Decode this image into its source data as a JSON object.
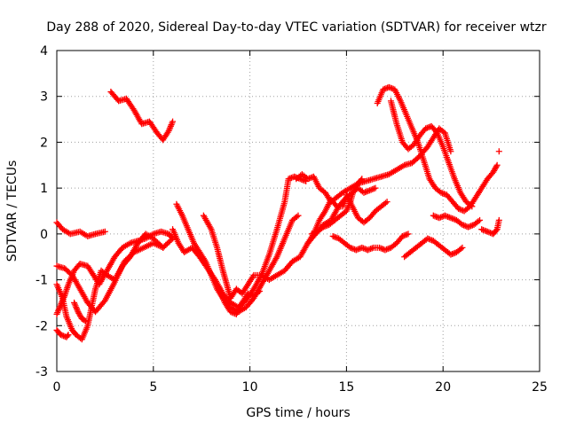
{
  "chart_data": {
    "type": "scatter",
    "title": "Day 288 of 2020, Sidereal Day-to-day VTEC variation (SDTVAR) for receiver wtzr",
    "xlabel": "GPS time / hours",
    "ylabel": "SDTVAR / TECUs",
    "xlim": [
      0,
      25
    ],
    "ylim": [
      -3,
      4
    ],
    "xticks": [
      0,
      5,
      10,
      15,
      20,
      25
    ],
    "yticks": [
      -3,
      -2,
      -1,
      0,
      1,
      2,
      3,
      4
    ],
    "grid": true,
    "marker": "+",
    "color": "#ff0000",
    "series": [
      {
        "name": "trace-1",
        "points": [
          [
            0.0,
            0.25
          ],
          [
            0.3,
            0.1
          ],
          [
            0.7,
            0.0
          ],
          [
            1.2,
            0.05
          ],
          [
            1.6,
            -0.05
          ],
          [
            2.0,
            0.0
          ],
          [
            2.5,
            0.05
          ]
        ]
      },
      {
        "name": "trace-2",
        "points": [
          [
            0.0,
            -0.7
          ],
          [
            0.4,
            -0.75
          ],
          [
            0.8,
            -0.9
          ],
          [
            1.2,
            -1.2
          ],
          [
            1.6,
            -1.5
          ],
          [
            2.0,
            -1.7
          ],
          [
            2.5,
            -1.45
          ],
          [
            3.0,
            -1.05
          ],
          [
            3.5,
            -0.6
          ],
          [
            4.0,
            -0.4
          ],
          [
            4.5,
            -0.3
          ],
          [
            5.0,
            -0.2
          ],
          [
            5.5,
            -0.3
          ]
        ]
      },
      {
        "name": "trace-3",
        "points": [
          [
            0.0,
            -1.1
          ],
          [
            0.3,
            -1.4
          ],
          [
            0.5,
            -1.8
          ],
          [
            0.8,
            -2.1
          ],
          [
            1.0,
            -2.2
          ],
          [
            1.3,
            -2.3
          ],
          [
            1.6,
            -2.0
          ],
          [
            1.8,
            -1.6
          ],
          [
            2.0,
            -1.2
          ],
          [
            2.3,
            -0.8
          ],
          [
            2.6,
            -0.9
          ],
          [
            3.0,
            -1.0
          ],
          [
            3.4,
            -0.7
          ],
          [
            3.8,
            -0.5
          ],
          [
            4.2,
            -0.2
          ],
          [
            4.6,
            0.0
          ],
          [
            5.0,
            -0.1
          ],
          [
            5.5,
            -0.3
          ],
          [
            6.0,
            -0.1
          ]
        ]
      },
      {
        "name": "trace-4",
        "points": [
          [
            0.0,
            -1.75
          ],
          [
            0.2,
            -1.55
          ],
          [
            0.4,
            -1.35
          ],
          [
            0.6,
            -1.1
          ],
          [
            0.9,
            -0.8
          ],
          [
            1.2,
            -0.65
          ],
          [
            1.6,
            -0.7
          ],
          [
            1.9,
            -0.9
          ],
          [
            2.2,
            -1.1
          ],
          [
            2.6,
            -0.8
          ],
          [
            3.0,
            -0.5
          ],
          [
            3.4,
            -0.3
          ],
          [
            3.8,
            -0.2
          ],
          [
            4.2,
            -0.15
          ],
          [
            4.6,
            -0.1
          ],
          [
            5.0,
            0.0
          ],
          [
            5.4,
            0.05
          ],
          [
            5.8,
            0.0
          ],
          [
            6.0,
            -0.1
          ]
        ]
      },
      {
        "name": "trace-5",
        "points": [
          [
            0.0,
            -2.1
          ],
          [
            0.2,
            -2.2
          ],
          [
            0.5,
            -2.25
          ],
          [
            0.6,
            -2.2
          ]
        ]
      },
      {
        "name": "trace-6",
        "points": [
          [
            0.9,
            -1.5
          ],
          [
            1.1,
            -1.7
          ],
          [
            1.3,
            -1.85
          ],
          [
            1.5,
            -1.9
          ]
        ]
      },
      {
        "name": "trace-7",
        "points": [
          [
            2.8,
            3.1
          ],
          [
            3.2,
            2.9
          ],
          [
            3.6,
            2.95
          ],
          [
            4.0,
            2.7
          ],
          [
            4.4,
            2.4
          ],
          [
            4.8,
            2.45
          ],
          [
            5.2,
            2.2
          ],
          [
            5.5,
            2.05
          ],
          [
            5.8,
            2.25
          ],
          [
            6.0,
            2.45
          ]
        ]
      },
      {
        "name": "trace-8",
        "points": [
          [
            6.0,
            0.1
          ],
          [
            6.3,
            -0.2
          ],
          [
            6.6,
            -0.4
          ],
          [
            7.0,
            -0.3
          ],
          [
            7.4,
            -0.5
          ],
          [
            7.8,
            -0.75
          ],
          [
            8.2,
            -1.0
          ],
          [
            8.6,
            -1.3
          ],
          [
            9.0,
            -1.5
          ],
          [
            9.4,
            -1.6
          ],
          [
            9.8,
            -1.45
          ],
          [
            10.2,
            -1.2
          ],
          [
            10.6,
            -0.9
          ],
          [
            11.0,
            -0.45
          ],
          [
            11.4,
            0.1
          ],
          [
            11.8,
            0.7
          ],
          [
            12.0,
            1.2
          ],
          [
            12.3,
            1.25
          ],
          [
            12.6,
            1.2
          ],
          [
            12.9,
            1.15
          ]
        ]
      },
      {
        "name": "trace-9",
        "points": [
          [
            6.2,
            0.65
          ],
          [
            6.5,
            0.4
          ],
          [
            6.8,
            0.1
          ],
          [
            7.1,
            -0.2
          ],
          [
            7.4,
            -0.4
          ],
          [
            7.7,
            -0.6
          ],
          [
            8.0,
            -0.9
          ],
          [
            8.3,
            -1.2
          ],
          [
            8.6,
            -1.4
          ],
          [
            9.0,
            -1.6
          ],
          [
            9.4,
            -1.7
          ],
          [
            9.8,
            -1.6
          ],
          [
            10.2,
            -1.4
          ],
          [
            10.6,
            -1.1
          ],
          [
            11.0,
            -0.8
          ],
          [
            11.4,
            -0.5
          ],
          [
            11.8,
            -0.1
          ],
          [
            12.2,
            0.3
          ],
          [
            12.5,
            0.4
          ]
        ]
      },
      {
        "name": "trace-10",
        "points": [
          [
            7.6,
            0.4
          ],
          [
            8.0,
            0.1
          ],
          [
            8.3,
            -0.3
          ],
          [
            8.6,
            -0.8
          ],
          [
            8.8,
            -1.1
          ],
          [
            9.0,
            -1.4
          ],
          [
            9.3,
            -1.2
          ],
          [
            9.6,
            -1.3
          ],
          [
            9.9,
            -1.1
          ],
          [
            10.2,
            -0.9
          ],
          [
            10.6,
            -0.9
          ],
          [
            11.0,
            -1.0
          ],
          [
            11.4,
            -0.9
          ],
          [
            11.8,
            -0.8
          ],
          [
            12.2,
            -0.6
          ],
          [
            12.6,
            -0.5
          ],
          [
            13.0,
            -0.2
          ],
          [
            13.4,
            0.0
          ],
          [
            13.8,
            0.2
          ],
          [
            14.2,
            0.3
          ],
          [
            14.6,
            0.6
          ],
          [
            15.0,
            0.8
          ]
        ]
      },
      {
        "name": "trace-11",
        "points": [
          [
            8.4,
            -1.2
          ],
          [
            8.7,
            -1.5
          ],
          [
            9.0,
            -1.7
          ],
          [
            9.3,
            -1.75
          ],
          [
            9.6,
            -1.5
          ],
          [
            9.9,
            -1.3
          ],
          [
            10.2,
            -1.35
          ],
          [
            10.5,
            -1.25
          ]
        ]
      },
      {
        "name": "trace-12",
        "points": [
          [
            12.4,
            1.2
          ],
          [
            12.7,
            1.3
          ],
          [
            13.0,
            1.2
          ],
          [
            13.3,
            1.25
          ],
          [
            13.6,
            1.0
          ],
          [
            13.9,
            0.9
          ],
          [
            14.2,
            0.7
          ],
          [
            14.5,
            0.8
          ],
          [
            14.8,
            0.9
          ],
          [
            15.2,
            1.0
          ],
          [
            15.6,
            1.1
          ],
          [
            16.0,
            1.15
          ],
          [
            16.4,
            1.2
          ],
          [
            16.8,
            1.25
          ],
          [
            17.2,
            1.3
          ],
          [
            17.6,
            1.4
          ],
          [
            18.0,
            1.5
          ],
          [
            18.4,
            1.55
          ],
          [
            18.8,
            1.7
          ],
          [
            19.2,
            1.9
          ],
          [
            19.5,
            2.1
          ],
          [
            19.8,
            2.3
          ],
          [
            20.1,
            2.2
          ],
          [
            20.4,
            1.8
          ]
        ]
      },
      {
        "name": "trace-13",
        "points": [
          [
            13.0,
            -0.2
          ],
          [
            13.3,
            0.0
          ],
          [
            13.6,
            0.3
          ],
          [
            13.9,
            0.5
          ],
          [
            14.2,
            0.75
          ],
          [
            14.5,
            0.6
          ],
          [
            14.8,
            0.6
          ],
          [
            15.0,
            0.8
          ],
          [
            15.3,
            0.9
          ],
          [
            15.6,
            1.0
          ],
          [
            15.9,
            0.9
          ],
          [
            16.2,
            0.95
          ],
          [
            16.5,
            1.0
          ]
        ]
      },
      {
        "name": "trace-14",
        "points": [
          [
            13.2,
            0.0
          ],
          [
            13.5,
            0.05
          ],
          [
            13.8,
            0.15
          ],
          [
            14.1,
            0.2
          ],
          [
            14.4,
            0.3
          ],
          [
            14.7,
            0.4
          ],
          [
            15.0,
            0.5
          ],
          [
            15.2,
            0.7
          ],
          [
            15.4,
            1.0
          ],
          [
            15.6,
            1.1
          ],
          [
            15.8,
            1.2
          ]
        ]
      },
      {
        "name": "trace-15",
        "points": [
          [
            14.3,
            -0.05
          ],
          [
            14.6,
            -0.1
          ],
          [
            14.9,
            -0.2
          ],
          [
            15.2,
            -0.3
          ],
          [
            15.5,
            -0.35
          ],
          [
            15.8,
            -0.3
          ],
          [
            16.1,
            -0.35
          ],
          [
            16.4,
            -0.3
          ],
          [
            16.7,
            -0.3
          ],
          [
            17.0,
            -0.35
          ],
          [
            17.3,
            -0.3
          ],
          [
            17.6,
            -0.2
          ],
          [
            17.9,
            -0.05
          ],
          [
            18.2,
            0.0
          ]
        ]
      },
      {
        "name": "trace-16",
        "points": [
          [
            15.0,
            0.85
          ],
          [
            15.3,
            0.6
          ],
          [
            15.6,
            0.35
          ],
          [
            15.9,
            0.25
          ],
          [
            16.2,
            0.35
          ],
          [
            16.5,
            0.5
          ],
          [
            16.8,
            0.6
          ],
          [
            17.1,
            0.7
          ]
        ]
      },
      {
        "name": "trace-17",
        "points": [
          [
            16.6,
            2.85
          ],
          [
            16.9,
            3.15
          ],
          [
            17.2,
            3.2
          ],
          [
            17.5,
            3.15
          ],
          [
            17.8,
            2.9
          ],
          [
            18.1,
            2.6
          ],
          [
            18.4,
            2.3
          ],
          [
            18.7,
            2.0
          ],
          [
            19.0,
            1.6
          ],
          [
            19.3,
            1.2
          ],
          [
            19.6,
            1.0
          ],
          [
            19.9,
            0.9
          ],
          [
            20.2,
            0.85
          ],
          [
            20.5,
            0.7
          ],
          [
            20.8,
            0.55
          ],
          [
            21.1,
            0.5
          ],
          [
            21.4,
            0.6
          ],
          [
            21.7,
            0.8
          ],
          [
            22.0,
            1.0
          ],
          [
            22.3,
            1.2
          ],
          [
            22.6,
            1.35
          ],
          [
            22.8,
            1.5
          ]
        ]
      },
      {
        "name": "trace-18",
        "points": [
          [
            17.3,
            2.9
          ],
          [
            17.6,
            2.4
          ],
          [
            17.9,
            2.0
          ],
          [
            18.2,
            1.85
          ],
          [
            18.5,
            1.95
          ],
          [
            18.8,
            2.15
          ],
          [
            19.1,
            2.3
          ],
          [
            19.4,
            2.35
          ],
          [
            19.7,
            2.2
          ],
          [
            20.0,
            1.9
          ],
          [
            20.3,
            1.55
          ],
          [
            20.6,
            1.2
          ],
          [
            20.9,
            0.9
          ],
          [
            21.2,
            0.7
          ],
          [
            21.5,
            0.6
          ]
        ]
      },
      {
        "name": "trace-19",
        "points": [
          [
            18.0,
            -0.5
          ],
          [
            18.3,
            -0.4
          ],
          [
            18.6,
            -0.3
          ],
          [
            18.9,
            -0.2
          ],
          [
            19.2,
            -0.1
          ],
          [
            19.5,
            -0.15
          ],
          [
            19.8,
            -0.25
          ],
          [
            20.1,
            -0.35
          ],
          [
            20.4,
            -0.45
          ],
          [
            20.7,
            -0.4
          ],
          [
            21.0,
            -0.3
          ]
        ]
      },
      {
        "name": "trace-20",
        "points": [
          [
            19.5,
            0.4
          ],
          [
            19.8,
            0.35
          ],
          [
            20.1,
            0.4
          ],
          [
            20.4,
            0.35
          ],
          [
            20.7,
            0.3
          ],
          [
            21.0,
            0.2
          ],
          [
            21.3,
            0.15
          ],
          [
            21.6,
            0.2
          ],
          [
            21.9,
            0.3
          ]
        ]
      },
      {
        "name": "trace-21",
        "points": [
          [
            22.0,
            0.1
          ],
          [
            22.3,
            0.05
          ],
          [
            22.6,
            0.0
          ],
          [
            22.8,
            0.1
          ],
          [
            22.9,
            0.3
          ]
        ]
      },
      {
        "name": "trace-22",
        "points": [
          [
            22.9,
            1.8
          ]
        ]
      }
    ]
  }
}
